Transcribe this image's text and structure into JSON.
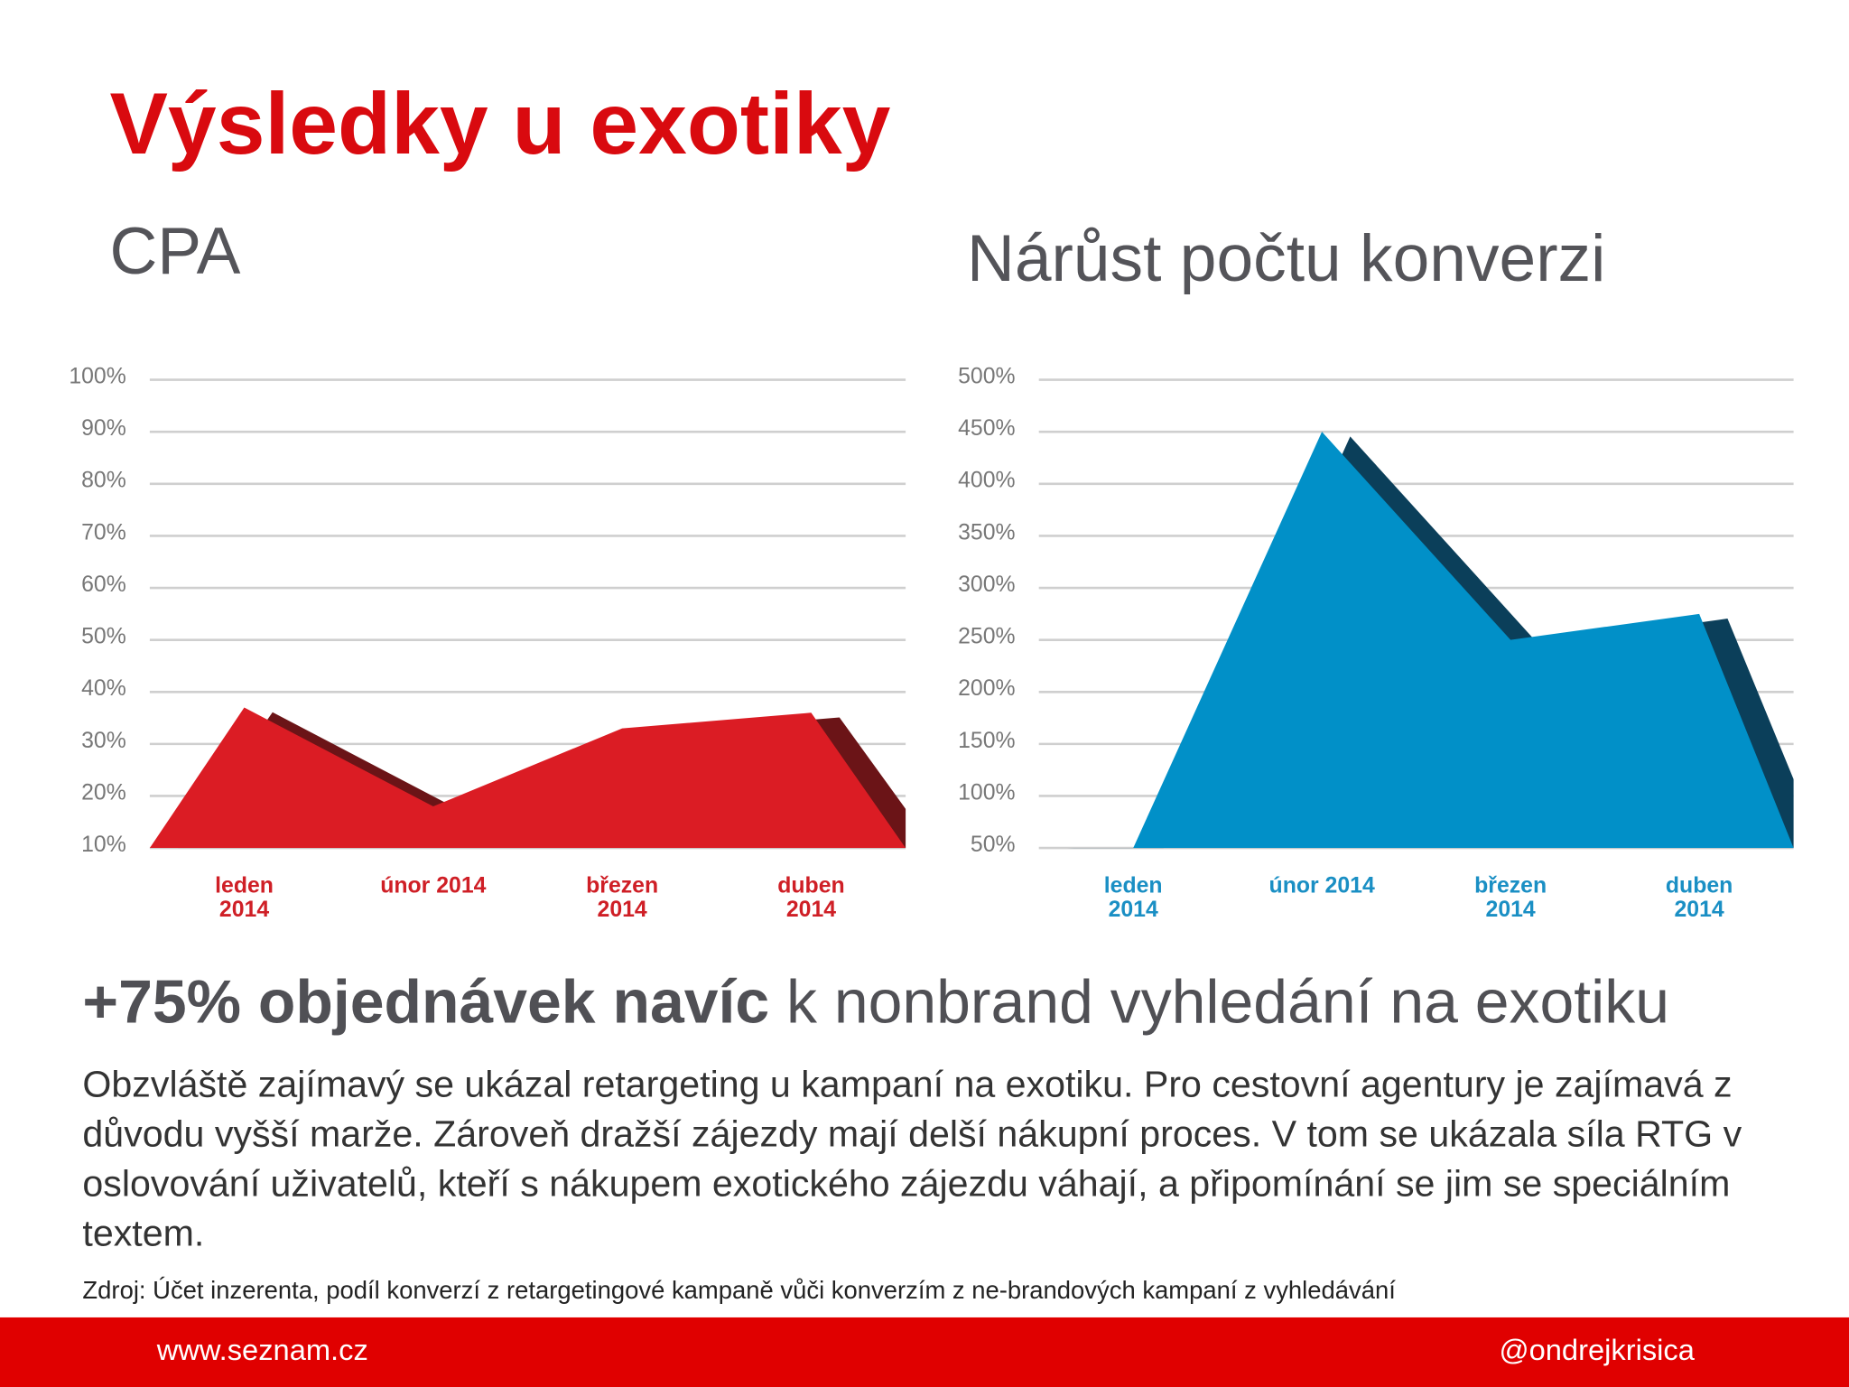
{
  "title": "Výsledky u exotiky",
  "chart_data": [
    {
      "type": "area",
      "title": "CPA",
      "categories": [
        "leden 2014",
        "únor 2014",
        "březen 2014",
        "duben 2014"
      ],
      "values": [
        37,
        18,
        33,
        36
      ],
      "color": "#db1c24",
      "shadow_color": "#6b1417",
      "label_color": "#cf1f26",
      "ylim": [
        10,
        100
      ],
      "yticks": [
        {
          "value": 10,
          "label": "10%"
        },
        {
          "value": 20,
          "label": "20%"
        },
        {
          "value": 30,
          "label": "30%"
        },
        {
          "value": 40,
          "label": "40%"
        },
        {
          "value": 50,
          "label": "50%"
        },
        {
          "value": 60,
          "label": "60%"
        },
        {
          "value": 70,
          "label": "70%"
        },
        {
          "value": 80,
          "label": "80%"
        },
        {
          "value": 90,
          "label": "90%"
        },
        {
          "value": 100,
          "label": "100%"
        }
      ],
      "grid": true
    },
    {
      "type": "area",
      "title": "Nárůst počtu konverzi",
      "categories": [
        "leden 2014",
        "únor 2014",
        "březen 2014",
        "duben 2014"
      ],
      "values": [
        50,
        450,
        250,
        275
      ],
      "color": "#0190c8",
      "shadow_color": "#0b3f5a",
      "label_color": "#1a8fc4",
      "ylim": [
        50,
        500
      ],
      "yticks": [
        {
          "value": 50,
          "label": "50%"
        },
        {
          "value": 100,
          "label": "100%"
        },
        {
          "value": 150,
          "label": "150%"
        },
        {
          "value": 200,
          "label": "200%"
        },
        {
          "value": 250,
          "label": "250%"
        },
        {
          "value": 300,
          "label": "300%"
        },
        {
          "value": 350,
          "label": "350%"
        },
        {
          "value": 400,
          "label": "400%"
        },
        {
          "value": 450,
          "label": "450%"
        },
        {
          "value": 500,
          "label": "500%"
        }
      ],
      "grid": true
    }
  ],
  "headline": {
    "bold": "+75% objednávek navíc",
    "rest": " k nonbrand vyhledání na exotiku"
  },
  "paragraph": "Obzvláště zajímavý se ukázal retargeting u kampaní na exotiku. Pro cestovní agentury je zajímavá z důvodu vyšší marže. Zároveň dražší zájezdy mají delší nákupní proces. V tom se ukázala síla RTG v oslovování uživatelů, kteří s nákupem exotického zájezdu váhají, a připomínání se jim se speciálním textem.",
  "source": "Zdroj: Účet inzerenta, podíl konverzí z retargetingové kampaně vůči konverzím z ne-brandových kampaní z vyhledávání",
  "footer": {
    "left": "www.seznam.cz",
    "right": "@ondrejkrisica"
  }
}
